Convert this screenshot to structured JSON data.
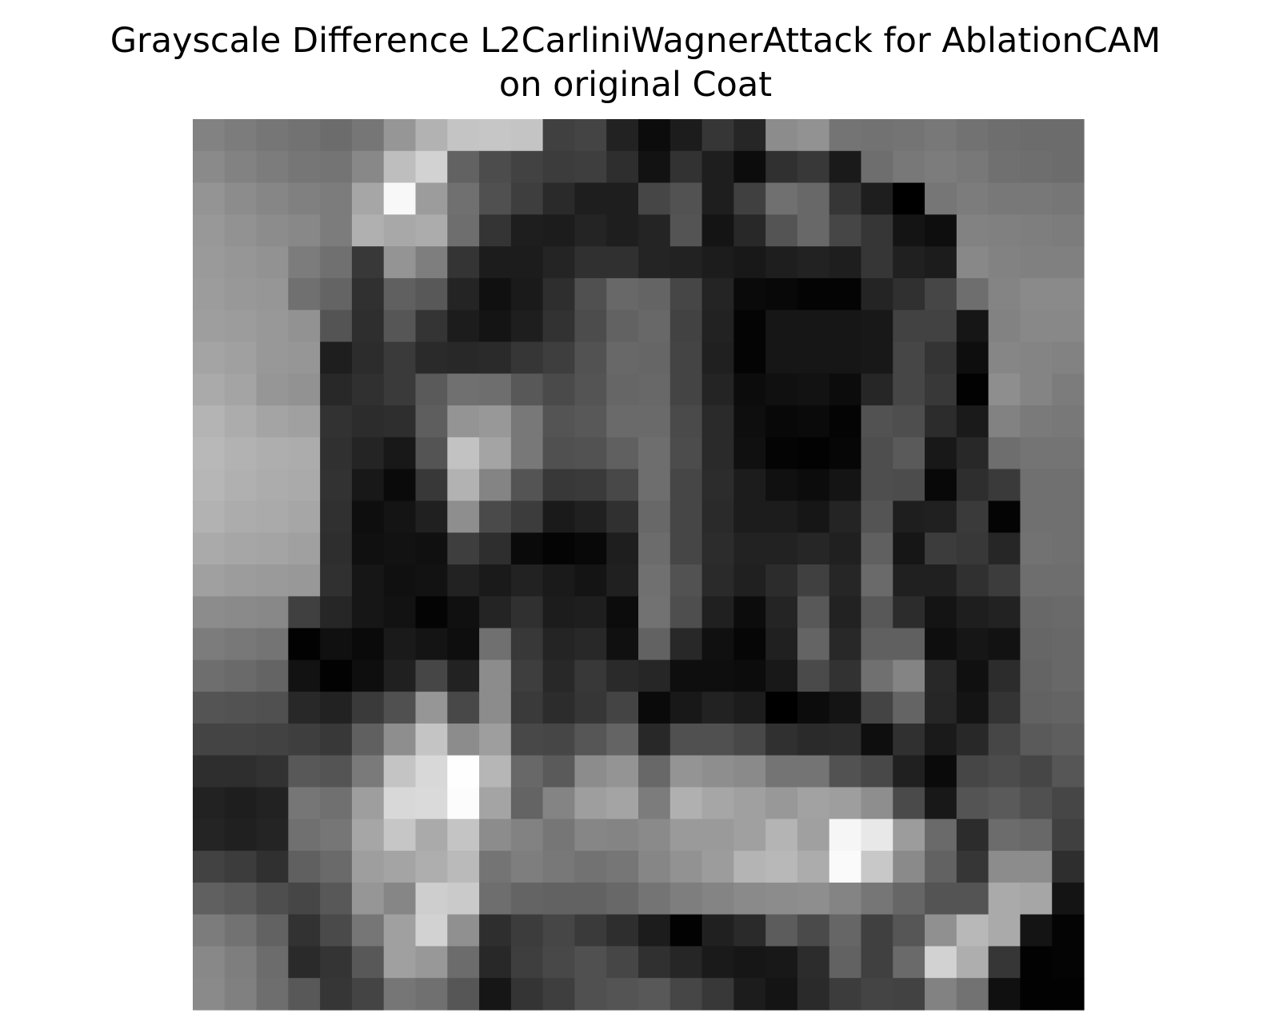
{
  "chart_data": {
    "type": "heatmap",
    "title": "Grayscale Difference L2CarliniWagnerAttack for AblationCAM",
    "subtitle": "on original Coat",
    "axes_visible": false,
    "colormap": "gray",
    "value_range": [
      0,
      255
    ],
    "rows": 28,
    "cols": 28,
    "values": [
      [
        130,
        124,
        118,
        114,
        108,
        118,
        150,
        178,
        196,
        198,
        196,
        64,
        68,
        34,
        12,
        28,
        54,
        38,
        140,
        146,
        116,
        114,
        116,
        120,
        114,
        110,
        108,
        108
      ],
      [
        138,
        130,
        124,
        118,
        116,
        136,
        190,
        210,
        98,
        76,
        66,
        60,
        62,
        46,
        18,
        50,
        30,
        12,
        48,
        56,
        26,
        110,
        120,
        124,
        120,
        112,
        110,
        108
      ],
      [
        148,
        140,
        134,
        128,
        124,
        166,
        248,
        156,
        112,
        80,
        62,
        42,
        30,
        30,
        70,
        82,
        30,
        64,
        112,
        104,
        54,
        30,
        0,
        118,
        124,
        120,
        120,
        118
      ],
      [
        152,
        146,
        140,
        136,
        124,
        176,
        168,
        172,
        110,
        52,
        30,
        28,
        36,
        30,
        36,
        84,
        20,
        40,
        84,
        104,
        70,
        54,
        20,
        14,
        130,
        128,
        126,
        124
      ],
      [
        154,
        150,
        146,
        124,
        112,
        56,
        148,
        126,
        52,
        28,
        28,
        36,
        48,
        48,
        36,
        34,
        28,
        24,
        30,
        34,
        30,
        54,
        32,
        28,
        136,
        130,
        128,
        128
      ],
      [
        156,
        152,
        150,
        112,
        100,
        48,
        96,
        88,
        36,
        16,
        26,
        46,
        80,
        104,
        100,
        70,
        36,
        10,
        8,
        4,
        4,
        36,
        48,
        70,
        110,
        132,
        138,
        138
      ],
      [
        158,
        156,
        152,
        146,
        84,
        46,
        86,
        52,
        28,
        20,
        30,
        50,
        76,
        98,
        104,
        66,
        34,
        4,
        22,
        22,
        22,
        24,
        66,
        66,
        22,
        130,
        136,
        136
      ],
      [
        164,
        160,
        152,
        150,
        30,
        44,
        58,
        42,
        40,
        42,
        54,
        62,
        82,
        104,
        102,
        68,
        32,
        4,
        22,
        22,
        22,
        24,
        70,
        52,
        14,
        134,
        132,
        130
      ],
      [
        170,
        164,
        150,
        146,
        40,
        48,
        58,
        90,
        112,
        110,
        88,
        74,
        84,
        102,
        104,
        68,
        36,
        12,
        16,
        18,
        12,
        38,
        70,
        56,
        2,
        142,
        132,
        124
      ],
      [
        180,
        172,
        164,
        160,
        50,
        44,
        46,
        94,
        148,
        152,
        120,
        84,
        88,
        106,
        106,
        74,
        42,
        14,
        8,
        10,
        4,
        82,
        78,
        44,
        26,
        130,
        122,
        120
      ],
      [
        184,
        178,
        174,
        172,
        48,
        36,
        24,
        84,
        194,
        164,
        120,
        80,
        82,
        96,
        110,
        76,
        42,
        16,
        4,
        2,
        6,
        78,
        90,
        24,
        40,
        110,
        116,
        116
      ],
      [
        182,
        176,
        172,
        170,
        50,
        24,
        10,
        56,
        178,
        132,
        84,
        56,
        58,
        72,
        110,
        70,
        44,
        28,
        16,
        12,
        20,
        78,
        76,
        8,
        46,
        58,
        112,
        112
      ],
      [
        178,
        172,
        170,
        166,
        48,
        14,
        20,
        32,
        142,
        74,
        60,
        26,
        32,
        48,
        104,
        70,
        42,
        28,
        28,
        22,
        36,
        84,
        30,
        32,
        58,
        4,
        112,
        112
      ],
      [
        170,
        166,
        164,
        160,
        46,
        16,
        18,
        16,
        62,
        46,
        10,
        4,
        8,
        30,
        108,
        70,
        44,
        34,
        34,
        38,
        32,
        96,
        22,
        60,
        56,
        38,
        114,
        112
      ],
      [
        160,
        156,
        154,
        152,
        48,
        22,
        16,
        18,
        34,
        26,
        34,
        26,
        20,
        32,
        112,
        82,
        42,
        32,
        44,
        64,
        38,
        106,
        32,
        32,
        48,
        60,
        110,
        110
      ],
      [
        140,
        138,
        136,
        64,
        38,
        22,
        18,
        4,
        16,
        36,
        48,
        28,
        30,
        12,
        114,
        78,
        32,
        12,
        36,
        88,
        34,
        88,
        44,
        20,
        30,
        34,
        104,
        106
      ],
      [
        124,
        120,
        116,
        2,
        16,
        10,
        26,
        20,
        14,
        112,
        56,
        36,
        40,
        16,
        98,
        40,
        16,
        6,
        32,
        100,
        40,
        96,
        96,
        14,
        22,
        18,
        102,
        104
      ],
      [
        110,
        106,
        100,
        18,
        2,
        14,
        32,
        70,
        34,
        140,
        62,
        40,
        56,
        42,
        38,
        14,
        14,
        12,
        24,
        74,
        50,
        112,
        132,
        40,
        16,
        44,
        100,
        104
      ],
      [
        84,
        82,
        80,
        40,
        34,
        58,
        80,
        150,
        72,
        140,
        58,
        44,
        54,
        68,
        10,
        24,
        34,
        28,
        0,
        12,
        20,
        68,
        100,
        38,
        20,
        52,
        98,
        100
      ],
      [
        68,
        68,
        66,
        62,
        56,
        96,
        142,
        196,
        140,
        158,
        72,
        70,
        86,
        100,
        40,
        80,
        80,
        72,
        48,
        42,
        44,
        14,
        48,
        26,
        40,
        70,
        90,
        94
      ],
      [
        46,
        46,
        50,
        88,
        84,
        122,
        196,
        216,
        254,
        182,
        104,
        90,
        140,
        148,
        104,
        148,
        142,
        138,
        116,
        116,
        82,
        72,
        32,
        10,
        70,
        76,
        70,
        86
      ],
      [
        34,
        30,
        34,
        118,
        112,
        158,
        216,
        218,
        252,
        164,
        100,
        132,
        158,
        164,
        124,
        176,
        166,
        160,
        152,
        162,
        158,
        142,
        74,
        24,
        84,
        90,
        80,
        70
      ],
      [
        36,
        32,
        36,
        112,
        118,
        166,
        198,
        170,
        196,
        140,
        130,
        118,
        134,
        132,
        138,
        154,
        154,
        160,
        180,
        160,
        246,
        232,
        156,
        106,
        44,
        108,
        104,
        64
      ],
      [
        66,
        60,
        48,
        96,
        106,
        158,
        164,
        174,
        186,
        116,
        126,
        120,
        114,
        118,
        134,
        146,
        156,
        180,
        184,
        172,
        250,
        200,
        138,
        98,
        54,
        140,
        140,
        46
      ],
      [
        96,
        90,
        78,
        70,
        88,
        150,
        134,
        206,
        202,
        110,
        100,
        98,
        98,
        104,
        116,
        126,
        132,
        138,
        140,
        142,
        132,
        118,
        102,
        84,
        84,
        170,
        166,
        20
      ],
      [
        124,
        114,
        98,
        50,
        74,
        118,
        160,
        210,
        144,
        46,
        60,
        70,
        58,
        46,
        28,
        2,
        32,
        42,
        92,
        74,
        102,
        64,
        86,
        144,
        184,
        170,
        20,
        4
      ],
      [
        136,
        126,
        108,
        42,
        52,
        88,
        160,
        152,
        108,
        40,
        62,
        72,
        80,
        70,
        48,
        38,
        26,
        22,
        24,
        44,
        98,
        64,
        106,
        210,
        174,
        54,
        2,
        4
      ],
      [
        138,
        128,
        110,
        88,
        54,
        68,
        118,
        112,
        86,
        22,
        52,
        62,
        80,
        84,
        88,
        70,
        56,
        28,
        20,
        42,
        60,
        68,
        66,
        130,
        114,
        16,
        2,
        2
      ]
    ]
  }
}
